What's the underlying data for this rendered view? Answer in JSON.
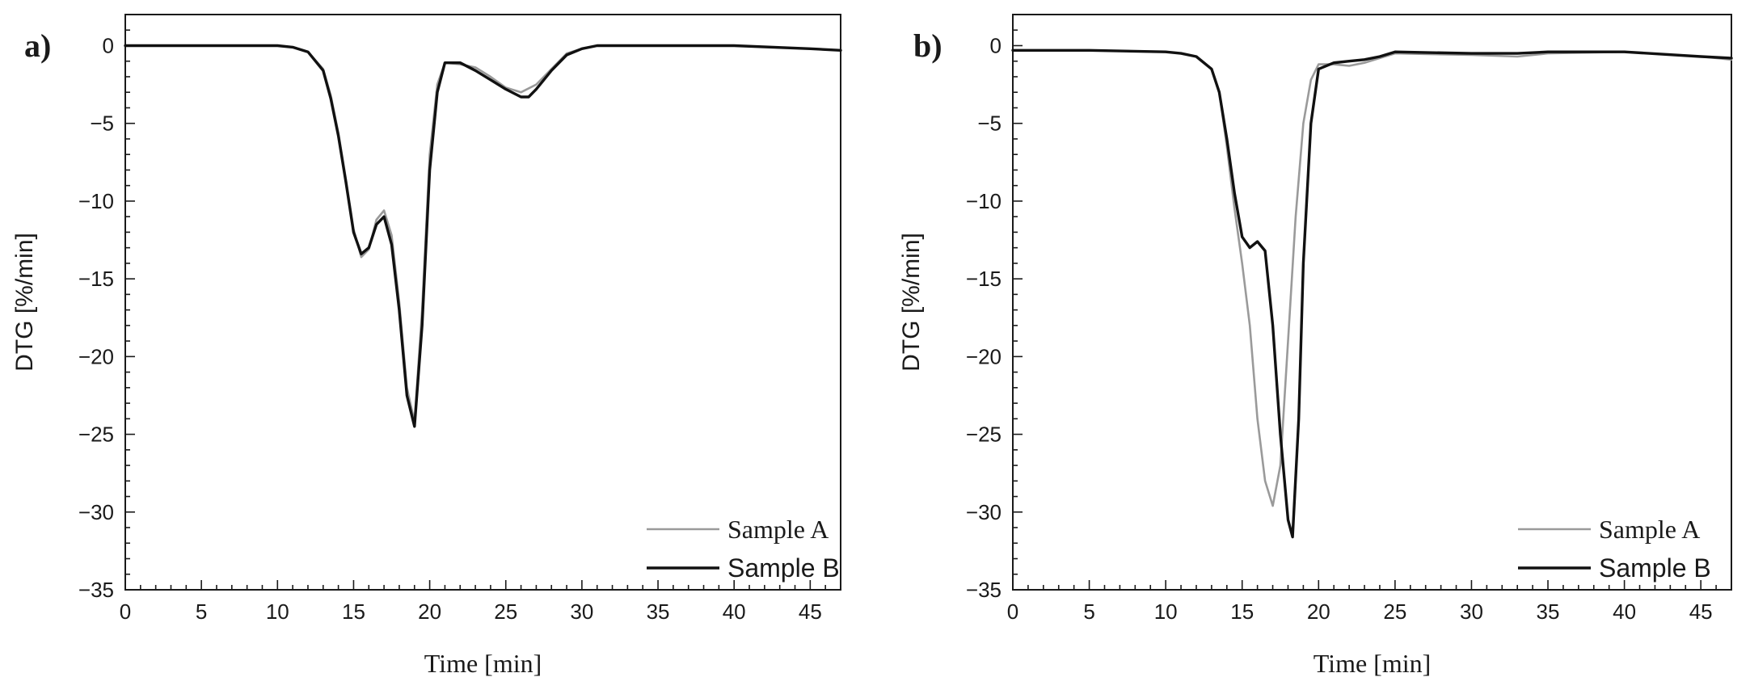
{
  "chart_data": [
    {
      "type": "line",
      "panel_label": "a)",
      "title": "",
      "xlabel": "Time [min]",
      "ylabel": "DTG [%/min]",
      "xlim": [
        0,
        47
      ],
      "ylim": [
        -35,
        2
      ],
      "x_ticks": [
        0,
        5,
        10,
        15,
        20,
        25,
        30,
        35,
        40,
        45
      ],
      "x_tick_labels": [
        "0",
        "5",
        "10",
        "15",
        "20",
        "25",
        "30",
        "35",
        "40",
        "45"
      ],
      "y_ticks": [
        0,
        -5,
        -10,
        -15,
        -20,
        -25,
        -30,
        -35
      ],
      "y_tick_labels": [
        "0",
        "−5",
        "−10",
        "−15",
        "−20",
        "−25",
        "−30",
        "−35"
      ],
      "grid": false,
      "legend_position": "bottom-right",
      "series": [
        {
          "name": "Sample A",
          "color": "#9a9a9a",
          "x": [
            0,
            5,
            10,
            11,
            12,
            13,
            13.5,
            14,
            14.5,
            15,
            15.5,
            16,
            16.5,
            17,
            17.5,
            18,
            18.5,
            19,
            19.5,
            20,
            20.5,
            21,
            22,
            23,
            24,
            25,
            26,
            27,
            28,
            29,
            30,
            31,
            35,
            40,
            45,
            47
          ],
          "y": [
            0,
            0,
            0,
            -0.1,
            -0.4,
            -1.5,
            -3.2,
            -5.6,
            -8.6,
            -11.8,
            -13.6,
            -13.1,
            -11.2,
            -10.6,
            -12.2,
            -16.5,
            -22,
            -24.2,
            -17,
            -7,
            -2.5,
            -1.1,
            -1.2,
            -1.4,
            -2,
            -2.7,
            -3,
            -2.5,
            -1.5,
            -0.5,
            -0.2,
            0,
            0,
            0,
            -0.2,
            -0.3
          ]
        },
        {
          "name": "Sample B",
          "color": "#111111",
          "x": [
            0,
            5,
            10,
            11,
            12,
            13,
            13.5,
            14,
            14.5,
            15,
            15.5,
            16,
            16.5,
            17,
            17.5,
            18,
            18.5,
            19,
            19.5,
            20,
            20.5,
            21,
            22,
            23,
            24,
            25,
            26,
            26.5,
            27,
            28,
            29,
            30,
            31,
            35,
            40,
            45,
            47
          ],
          "y": [
            0,
            0,
            0,
            -0.1,
            -0.4,
            -1.6,
            -3.4,
            -5.8,
            -8.8,
            -12,
            -13.4,
            -13,
            -11.5,
            -11,
            -12.8,
            -17,
            -22.5,
            -24.5,
            -18,
            -8,
            -3,
            -1.1,
            -1.1,
            -1.6,
            -2.2,
            -2.8,
            -3.3,
            -3.3,
            -2.8,
            -1.6,
            -0.6,
            -0.2,
            0,
            0,
            0,
            -0.2,
            -0.3
          ]
        }
      ]
    },
    {
      "type": "line",
      "panel_label": "b)",
      "title": "",
      "xlabel": "Time [min]",
      "ylabel": "DTG [%/min]",
      "xlim": [
        0,
        47
      ],
      "ylim": [
        -35,
        2
      ],
      "x_ticks": [
        0,
        5,
        10,
        15,
        20,
        25,
        30,
        35,
        40,
        45
      ],
      "x_tick_labels": [
        "0",
        "5",
        "10",
        "15",
        "20",
        "25",
        "30",
        "35",
        "40",
        "45"
      ],
      "y_ticks": [
        0,
        -5,
        -10,
        -15,
        -20,
        -25,
        -30,
        -35
      ],
      "y_tick_labels": [
        "0",
        "−5",
        "−10",
        "−15",
        "−20",
        "−25",
        "−30",
        "−35"
      ],
      "grid": false,
      "legend_position": "bottom-right",
      "series": [
        {
          "name": "Sample A",
          "color": "#9a9a9a",
          "x": [
            0,
            5,
            10,
            11,
            12,
            13,
            13.5,
            14,
            14.5,
            15,
            15.5,
            16,
            16.5,
            17,
            17.5,
            18,
            18.5,
            19,
            19.5,
            20,
            21,
            22,
            23,
            24,
            25,
            30,
            33,
            35,
            40,
            45,
            47
          ],
          "y": [
            -0.3,
            -0.3,
            -0.4,
            -0.5,
            -0.7,
            -1.5,
            -3,
            -6.5,
            -10.5,
            -14,
            -18,
            -24,
            -28,
            -29.6,
            -27,
            -19,
            -11,
            -5,
            -2.2,
            -1.2,
            -1.2,
            -1.3,
            -1.1,
            -0.8,
            -0.5,
            -0.6,
            -0.7,
            -0.5,
            -0.4,
            -0.7,
            -0.9
          ]
        },
        {
          "name": "Sample B",
          "color": "#111111",
          "x": [
            0,
            5,
            10,
            11,
            12,
            13,
            13.5,
            14,
            14.5,
            15,
            15.5,
            16,
            16.5,
            17,
            17.5,
            18,
            18.3,
            18.7,
            19,
            19.5,
            20,
            21,
            22,
            23,
            24,
            25,
            30,
            33,
            35,
            40,
            45,
            47
          ],
          "y": [
            -0.3,
            -0.3,
            -0.4,
            -0.5,
            -0.7,
            -1.5,
            -3,
            -6,
            -9.5,
            -12.3,
            -13,
            -12.6,
            -13.2,
            -18,
            -25,
            -30.5,
            -31.6,
            -24,
            -14,
            -5,
            -1.5,
            -1.1,
            -1,
            -0.9,
            -0.7,
            -0.4,
            -0.5,
            -0.5,
            -0.4,
            -0.4,
            -0.7,
            -0.8
          ]
        }
      ]
    }
  ]
}
